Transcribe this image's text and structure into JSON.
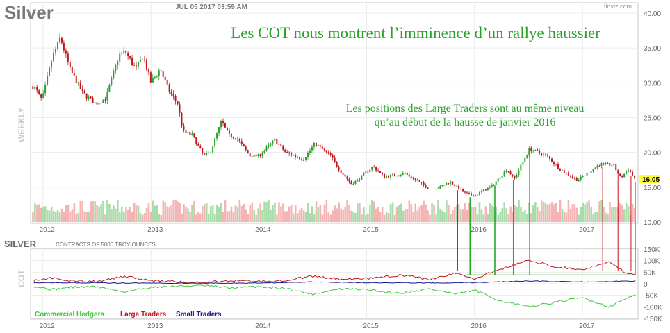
{
  "header": {
    "symbol": "Silver",
    "date": "JUL 05 2017 03:59 AM",
    "brand": "finviz.com",
    "period": "WEEKLY"
  },
  "annotations": {
    "headline": "Les COT nous montrent l’imminence d’un rallye haussier",
    "note_line1": "Les positions des Large Traders sont au même niveau",
    "note_line2": "qu’au début de la hausse de janvier 2016",
    "color": "#2ca02c"
  },
  "colors": {
    "up": "#2e9e2e",
    "down": "#c0141c",
    "vol_up": "#a8dca8",
    "vol_down": "#f4b4b4",
    "commercial": "#3bc63b",
    "large": "#c0141c",
    "small": "#1a1a8c",
    "last_price_bg": "#ffff33",
    "marker_red": "#c0141c",
    "marker_green": "#22aa22"
  },
  "chart_data": [
    {
      "type": "candlestick",
      "title": "Silver",
      "ylabel": "WEEKLY",
      "ylim": [
        10,
        40
      ],
      "yticks": [
        "40.00",
        "35.00",
        "30.00",
        "25.00",
        "20.00",
        "15.00",
        "10.00"
      ],
      "x_tick_labels": [
        "2012",
        "2013",
        "2014",
        "2015",
        "2016",
        "2017"
      ],
      "last_price": "16.05",
      "anchors": [
        [
          "2011-12-01",
          29.5
        ],
        [
          "2011-12-29",
          27.5
        ],
        [
          "2012-02-01",
          33.5
        ],
        [
          "2012-02-29",
          36.5
        ],
        [
          "2012-04-01",
          32
        ],
        [
          "2012-05-15",
          28.5
        ],
        [
          "2012-06-28",
          27
        ],
        [
          "2012-08-01",
          27.8
        ],
        [
          "2012-09-15",
          34
        ],
        [
          "2012-10-05",
          34.5
        ],
        [
          "2012-11-10",
          32
        ],
        [
          "2012-12-05",
          33.8
        ],
        [
          "2013-01-01",
          30
        ],
        [
          "2013-02-01",
          32
        ],
        [
          "2013-03-01",
          29
        ],
        [
          "2013-04-01",
          27
        ],
        [
          "2013-04-20",
          23
        ],
        [
          "2013-05-20",
          22.5
        ],
        [
          "2013-06-28",
          19.5
        ],
        [
          "2013-07-20",
          20
        ],
        [
          "2013-08-28",
          24.5
        ],
        [
          "2013-09-20",
          22.5
        ],
        [
          "2013-10-20",
          22
        ],
        [
          "2013-12-01",
          19.5
        ],
        [
          "2014-01-01",
          19.5
        ],
        [
          "2014-02-24",
          21.8
        ],
        [
          "2014-04-01",
          20
        ],
        [
          "2014-06-01",
          19
        ],
        [
          "2014-07-10",
          21.3
        ],
        [
          "2014-09-01",
          19.5
        ],
        [
          "2014-10-01",
          17.5
        ],
        [
          "2014-11-10",
          15.5
        ],
        [
          "2014-12-01",
          16
        ],
        [
          "2015-01-22",
          18
        ],
        [
          "2015-03-01",
          16.5
        ],
        [
          "2015-05-10",
          17
        ],
        [
          "2015-06-01",
          16.4
        ],
        [
          "2015-08-01",
          14.8
        ],
        [
          "2015-09-01",
          14.9
        ],
        [
          "2015-10-10",
          15.8
        ],
        [
          "2015-12-01",
          14.1
        ],
        [
          "2016-01-01",
          13.8
        ],
        [
          "2016-03-01",
          15.2
        ],
        [
          "2016-04-20",
          17.6
        ],
        [
          "2016-05-15",
          16.2
        ],
        [
          "2016-07-05",
          20.5
        ],
        [
          "2016-09-01",
          19.5
        ],
        [
          "2016-10-20",
          17.5
        ],
        [
          "2016-12-15",
          16
        ],
        [
          "2017-02-28",
          18.3
        ],
        [
          "2017-04-15",
          18.2
        ],
        [
          "2017-05-10",
          16.3
        ],
        [
          "2017-06-05",
          17.6
        ],
        [
          "2017-06-30",
          16.05
        ]
      ]
    },
    {
      "type": "line",
      "title": "SILVER",
      "subtitle": "CONTRACTS OF 5000 TROY OUNCES",
      "ylabel": "COT",
      "ylim": [
        -150000,
        150000
      ],
      "yticks": [
        "150K",
        "100K",
        "50K",
        "0",
        "-50K",
        "-100K",
        "-150K"
      ],
      "x_tick_labels": [
        "2012",
        "2013",
        "2014",
        "2015",
        "2016",
        "2017"
      ],
      "series": [
        {
          "name": "Commercial Hedgers",
          "points": [
            [
              "2011-12-01",
              -10000
            ],
            [
              "2012-02-01",
              -25000
            ],
            [
              "2012-04-01",
              -15000
            ],
            [
              "2012-07-01",
              -12000
            ],
            [
              "2012-10-01",
              -35000
            ],
            [
              "2013-01-01",
              -15000
            ],
            [
              "2013-04-01",
              -10000
            ],
            [
              "2013-07-01",
              -8000
            ],
            [
              "2013-10-01",
              -18000
            ],
            [
              "2014-01-01",
              -12000
            ],
            [
              "2014-04-01",
              -20000
            ],
            [
              "2014-07-01",
              -45000
            ],
            [
              "2014-10-01",
              -22000
            ],
            [
              "2015-01-01",
              -25000
            ],
            [
              "2015-03-01",
              -35000
            ],
            [
              "2015-05-01",
              -40000
            ],
            [
              "2015-08-01",
              -22000
            ],
            [
              "2015-11-01",
              -45000
            ],
            [
              "2016-01-01",
              -28000
            ],
            [
              "2016-04-01",
              -75000
            ],
            [
              "2016-07-01",
              -100000
            ],
            [
              "2016-10-01",
              -80000
            ],
            [
              "2017-01-01",
              -60000
            ],
            [
              "2017-04-01",
              -100000
            ],
            [
              "2017-06-01",
              -60000
            ],
            [
              "2017-07-01",
              -50000
            ]
          ]
        },
        {
          "name": "Large Traders",
          "points": [
            [
              "2011-12-01",
              15000
            ],
            [
              "2012-02-01",
              25000
            ],
            [
              "2012-04-01",
              12000
            ],
            [
              "2012-07-01",
              10000
            ],
            [
              "2012-10-01",
              32000
            ],
            [
              "2013-01-01",
              15000
            ],
            [
              "2013-04-01",
              8000
            ],
            [
              "2013-07-01",
              5000
            ],
            [
              "2013-10-01",
              15000
            ],
            [
              "2014-01-01",
              10000
            ],
            [
              "2014-04-01",
              15000
            ],
            [
              "2014-07-01",
              32000
            ],
            [
              "2014-10-01",
              20000
            ],
            [
              "2015-01-01",
              22000
            ],
            [
              "2015-03-01",
              30000
            ],
            [
              "2015-05-01",
              38000
            ],
            [
              "2015-08-01",
              18000
            ],
            [
              "2015-11-01",
              45000
            ],
            [
              "2016-01-01",
              22000
            ],
            [
              "2016-04-01",
              65000
            ],
            [
              "2016-07-01",
              100000
            ],
            [
              "2016-10-01",
              75000
            ],
            [
              "2017-01-01",
              60000
            ],
            [
              "2017-04-01",
              95000
            ],
            [
              "2017-06-01",
              45000
            ],
            [
              "2017-07-01",
              38000
            ]
          ]
        },
        {
          "name": "Small Traders",
          "points": [
            [
              "2011-12-01",
              5000
            ],
            [
              "2012-06-01",
              4000
            ],
            [
              "2013-01-01",
              3000
            ],
            [
              "2013-07-01",
              2000
            ],
            [
              "2014-01-01",
              3000
            ],
            [
              "2014-07-01",
              8000
            ],
            [
              "2015-01-01",
              5000
            ],
            [
              "2015-07-01",
              4000
            ],
            [
              "2016-01-01",
              5000
            ],
            [
              "2016-07-01",
              12000
            ],
            [
              "2017-01-01",
              8000
            ],
            [
              "2017-07-01",
              12000
            ]
          ]
        }
      ]
    }
  ],
  "markers": {
    "red_dates": [
      "2015-11-05",
      "2016-07-06",
      "2017-03-10",
      "2017-05-01",
      "2017-06-14"
    ],
    "green_dates": [
      "2015-12-17",
      "2016-03-10",
      "2016-05-12",
      "2016-07-06",
      "2017-06-28"
    ],
    "baseline_from": "2015-12-01",
    "baseline_to": "2017-06-28",
    "baseline_value": 38000
  }
}
